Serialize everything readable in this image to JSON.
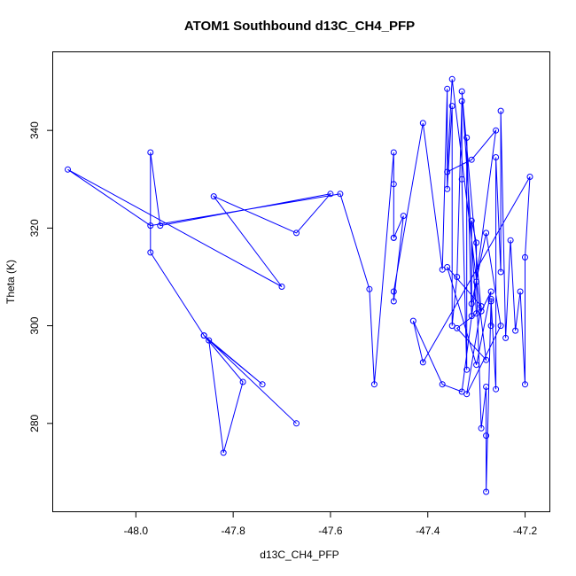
{
  "chart_data": {
    "type": "line",
    "title": "ATOM1 Southbound d13C_CH4_PFP",
    "xlabel": "d13C_CH4_PFP",
    "ylabel": "Theta (K)",
    "xlim": [
      -48.17,
      -47.15
    ],
    "ylim": [
      262,
      356
    ],
    "xticks": [
      -48.0,
      -47.8,
      -47.6,
      -47.4,
      -47.2
    ],
    "xtick_labels": [
      "-48.0",
      "-47.8",
      "-47.6",
      "-47.4",
      "-47.2"
    ],
    "yticks": [
      280,
      300,
      320,
      340
    ],
    "ytick_labels": [
      "280",
      "300",
      "320",
      "340"
    ],
    "series": [
      {
        "name": "ATOM1 Southbound",
        "color": "#0000ff",
        "x": [
          -47.67,
          -47.86,
          -47.74,
          -47.85,
          -47.82,
          -47.78,
          -47.86,
          -47.97,
          -47.97,
          -47.95,
          -47.6,
          -47.67,
          -47.84,
          -47.7,
          -48.14,
          -47.97,
          -47.58,
          -47.52,
          -47.51,
          -47.47,
          -47.47,
          -47.47,
          -47.47,
          -47.45,
          -47.47,
          -47.47,
          -47.41,
          -47.37,
          -47.36,
          -47.36,
          -47.35,
          -47.35,
          -47.34,
          -47.33,
          -47.33,
          -47.32,
          -47.32,
          -47.31,
          -47.31,
          -47.3,
          -47.3,
          -47.29,
          -47.28,
          -47.28,
          -47.28,
          -47.27,
          -47.27,
          -47.27,
          -47.26,
          -47.26,
          -47.25,
          -47.25,
          -47.24,
          -47.23,
          -47.22,
          -47.21,
          -47.2,
          -47.2,
          -47.19,
          -47.41,
          -47.43,
          -47.37,
          -47.33,
          -47.26,
          -47.31,
          -47.36,
          -47.35,
          -47.28,
          -47.34,
          -47.3,
          -47.33,
          -47.29,
          -47.27,
          -47.3,
          -47.36,
          -47.29,
          -47.32,
          -47.25,
          -47.28,
          -47.31
        ],
        "y": [
          280.0,
          298.0,
          288.0,
          297.0,
          274.0,
          288.5,
          298.0,
          315.0,
          335.5,
          320.5,
          327.0,
          319.0,
          326.5,
          308.0,
          332.0,
          320.5,
          327.0,
          307.5,
          288.0,
          335.5,
          318.0,
          329.0,
          318.0,
          322.5,
          305.0,
          307.0,
          341.5,
          311.5,
          348.5,
          328.0,
          345.0,
          300.0,
          310.0,
          346.0,
          330.0,
          291.0,
          338.5,
          302.0,
          321.5,
          317.0,
          309.0,
          279.0,
          287.5,
          277.5,
          266.0,
          305.0,
          300.0,
          305.5,
          287.0,
          334.5,
          311.0,
          344.0,
          297.5,
          317.5,
          299.0,
          307.0,
          288.0,
          314.0,
          330.5,
          292.5,
          301.0,
          288.0,
          286.5,
          340.0,
          334.0,
          331.5,
          350.5,
          293.0,
          299.5,
          302.5,
          348.0,
          303.0,
          307.0,
          292.0,
          312.0,
          304.0,
          286.0,
          300.0,
          319.0,
          304.5
        ]
      }
    ]
  }
}
